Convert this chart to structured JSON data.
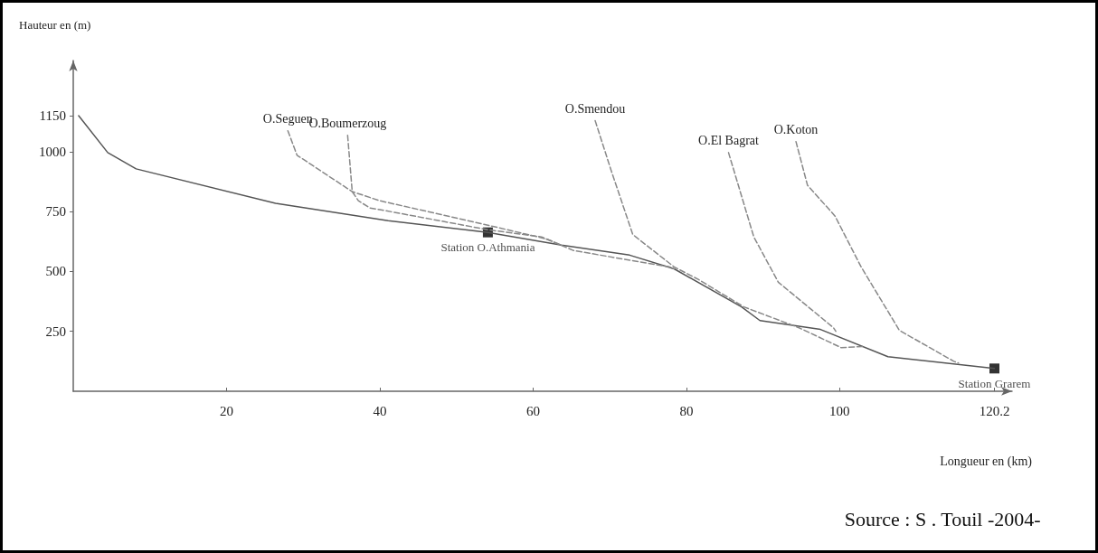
{
  "chart_data": {
    "type": "line",
    "ylabel": "Hauteur en (m)",
    "xlabel": "Longueur en (km)",
    "xlim": [
      0,
      122.5
    ],
    "xticks": [
      20,
      40,
      60,
      80,
      100,
      120.2
    ],
    "ylim": [
      0,
      1380
    ],
    "yticks": [
      250,
      500,
      750,
      1000,
      1150
    ],
    "grid": false,
    "legend": false,
    "marker": "none",
    "series": [
      {
        "color": "#555555",
        "line_style": "solid",
        "x": [
          0.7,
          4.5,
          8.2,
          26.4,
          41.1,
          54.1,
          63.7,
          72.6,
          78.4,
          87.2,
          89.6,
          97.5,
          106.3,
          120.2
        ],
        "values": [
          1150,
          996,
          928,
          784,
          712,
          663,
          610,
          568,
          511,
          352,
          295,
          258,
          144,
          95
        ]
      },
      {
        "name": "O.Seguen",
        "color": "#888888",
        "line_style": "dashed",
        "x": [
          28,
          29.2,
          36.4,
          40,
          54.1,
          61.7,
          63.7
        ],
        "values": [
          1087,
          985,
          833,
          795,
          693,
          636,
          610
        ]
      },
      {
        "name": "O.Boumerzoug",
        "color": "#888888",
        "line_style": "dashed",
        "x": [
          35.8,
          36.4,
          37.2,
          38.7,
          40,
          54.1,
          61.1,
          65.3,
          77.8,
          78.4
        ],
        "values": [
          1068,
          833,
          795,
          765,
          758,
          674,
          644,
          587,
          519,
          511
        ]
      },
      {
        "name": "O.Smendou",
        "color": "#888888",
        "line_style": "dashed",
        "x": [
          68.1,
          70.2,
          73,
          73.4,
          78.4,
          81.6,
          87.5,
          94.7,
          100.2,
          103
        ],
        "values": [
          1129,
          920,
          655,
          644,
          519,
          466,
          352,
          265,
          182,
          187
        ]
      },
      {
        "name": "O.El Bagrat",
        "color": "#888888",
        "line_style": "dashed",
        "x": [
          85.5,
          88.8,
          92,
          99.2,
          99.5
        ],
        "values": [
          996,
          644,
          455,
          265,
          250
        ]
      },
      {
        "name": "O.Koton",
        "color": "#888888",
        "line_style": "dashed",
        "x": [
          94.3,
          95.8,
          99.4,
          102.8,
          107.8,
          114.9,
          115.5
        ],
        "values": [
          1042,
          860,
          731,
          519,
          254,
          125,
          118
        ]
      },
      {
        "type": "scatter",
        "marker": "square",
        "color": "#000000",
        "x": [
          54.1,
          120.2
        ],
        "values": [
          663,
          95
        ]
      }
    ],
    "annotations": [
      {
        "text": "Station O.Athmania",
        "x": 54.1,
        "y": 663
      },
      {
        "text": "Station Grarem",
        "x": 120.2,
        "y": 95
      },
      "Source : S . Touil -2004-"
    ]
  }
}
